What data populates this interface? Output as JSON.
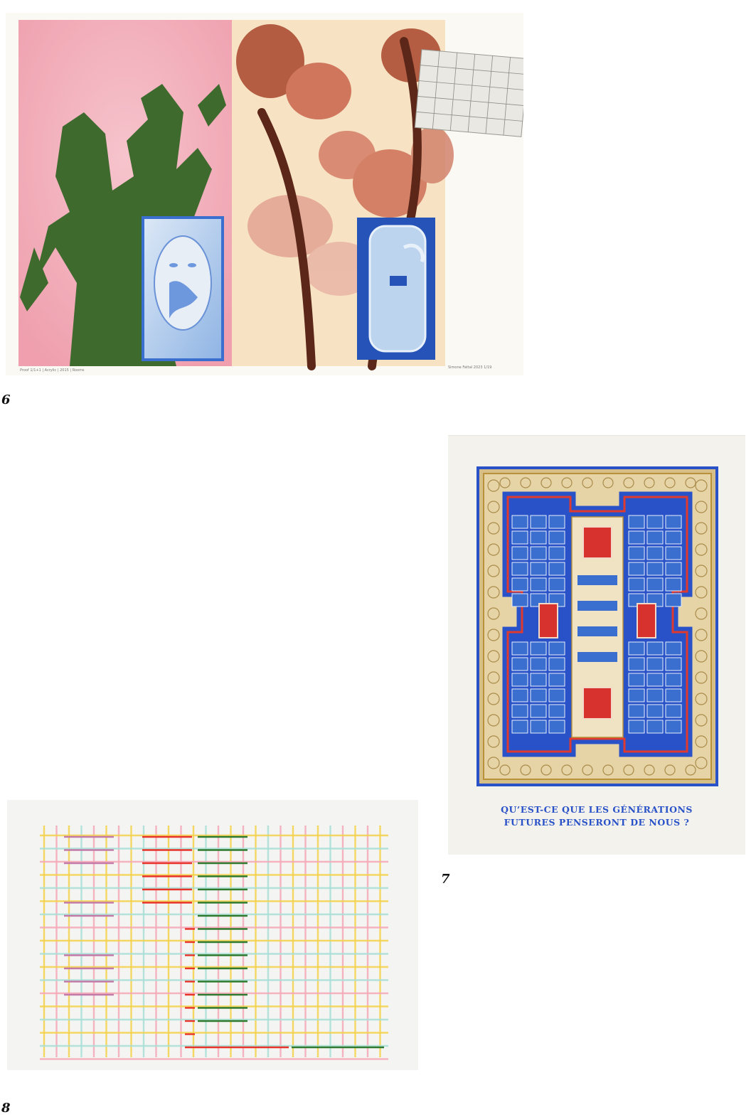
{
  "plates": [
    {
      "number": "6",
      "inscription_left": "Proof 1/1+1 | Acrylic | 2015 | Rooms",
      "inscription_right": "Simone Fattal 2023 1/19"
    },
    {
      "number": "7",
      "caption_line1": "QU’EST-CE QUE LES GÉNÉRATIONS",
      "caption_line2": "FUTURES PENSERONT DE NOUS ?"
    },
    {
      "number": "8"
    }
  ],
  "colors": {
    "pink": "#f2b3bd",
    "cream": "#f8e4c4",
    "rust": "#a0442c",
    "green": "#3f6a30",
    "blue": "#3a6fd0",
    "gold": "#b8913a",
    "red": "#d8322e",
    "caption_blue": "#2a52c8"
  }
}
